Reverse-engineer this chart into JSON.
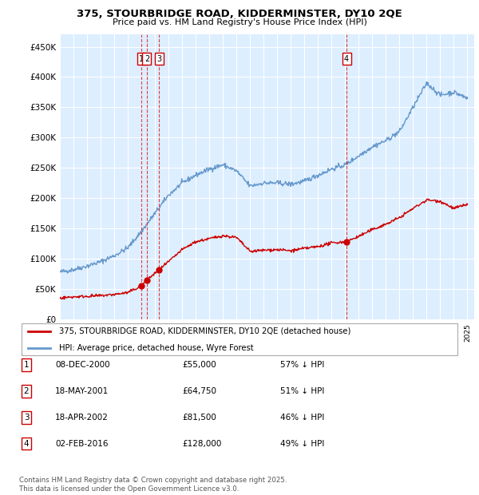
{
  "title": "375, STOURBRIDGE ROAD, KIDDERMINSTER, DY10 2QE",
  "subtitle": "Price paid vs. HM Land Registry's House Price Index (HPI)",
  "ylabel_ticks": [
    "£0",
    "£50K",
    "£100K",
    "£150K",
    "£200K",
    "£250K",
    "£300K",
    "£350K",
    "£400K",
    "£450K"
  ],
  "ytick_values": [
    0,
    50000,
    100000,
    150000,
    200000,
    250000,
    300000,
    350000,
    400000,
    450000
  ],
  "ylim": [
    0,
    470000
  ],
  "xlim_start": 1995,
  "xlim_end": 2025.5,
  "bg_color": "#ddeeff",
  "grid_color": "#ffffff",
  "red_color": "#cc0000",
  "blue_color": "#6699cc",
  "transactions": [
    {
      "num": 1,
      "date": "08-DEC-2000",
      "price": 55000,
      "x": 2001.0,
      "pct": "57%",
      "dir": "↓"
    },
    {
      "num": 2,
      "date": "18-MAY-2001",
      "price": 64750,
      "x": 2001.4,
      "pct": "51%",
      "dir": "↓"
    },
    {
      "num": 3,
      "date": "18-APR-2002",
      "price": 81500,
      "x": 2002.3,
      "pct": "46%",
      "dir": "↓"
    },
    {
      "num": 4,
      "date": "02-FEB-2016",
      "price": 128000,
      "x": 2016.1,
      "pct": "49%",
      "dir": "↓"
    }
  ],
  "legend_entries": [
    "375, STOURBRIDGE ROAD, KIDDERMINSTER, DY10 2QE (detached house)",
    "HPI: Average price, detached house, Wyre Forest"
  ],
  "footer": "Contains HM Land Registry data © Crown copyright and database right 2025.\nThis data is licensed under the Open Government Licence v3.0.",
  "hpi_anchors_x": [
    1995,
    1996,
    1997,
    1998,
    1999,
    2000,
    2001,
    2002,
    2003,
    2004,
    2005,
    2006,
    2007,
    2008,
    2009,
    2010,
    2011,
    2012,
    2013,
    2014,
    2015,
    2016,
    2017,
    2018,
    2019,
    2020,
    2021,
    2022,
    2023,
    2024,
    2025
  ],
  "hpi_anchors_y": [
    78000,
    82000,
    88000,
    95000,
    105000,
    118000,
    145000,
    175000,
    205000,
    225000,
    238000,
    248000,
    255000,
    245000,
    220000,
    225000,
    225000,
    223000,
    228000,
    238000,
    248000,
    255000,
    270000,
    285000,
    295000,
    310000,
    350000,
    390000,
    370000,
    375000,
    365000
  ],
  "red_anchors_x": [
    1995,
    1996,
    1997,
    1998,
    1999,
    2000,
    2001.0,
    2001.4,
    2002.3,
    2003,
    2004,
    2005,
    2006,
    2007,
    2008,
    2009,
    2010,
    2011,
    2012,
    2013,
    2014,
    2015,
    2016.1,
    2017,
    2018,
    2019,
    2020,
    2021,
    2022,
    2023,
    2024,
    2025
  ],
  "red_anchors_y": [
    35000,
    37000,
    38000,
    39000,
    41000,
    44000,
    55000,
    64750,
    81500,
    95000,
    115000,
    128000,
    133000,
    138000,
    135000,
    112000,
    114000,
    115000,
    113000,
    117000,
    120000,
    126000,
    128000,
    137000,
    148000,
    157000,
    168000,
    183000,
    197000,
    195000,
    183000,
    190000
  ]
}
